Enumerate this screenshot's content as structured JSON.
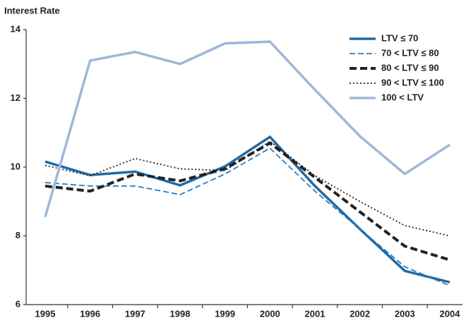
{
  "chart_data": {
    "type": "line",
    "y_label": "Interest Rate",
    "categories": [
      "1995",
      "1996",
      "1997",
      "1998",
      "1999",
      "2000",
      "2001",
      "2002",
      "2003",
      "2004"
    ],
    "ylim": [
      6,
      14
    ],
    "yticks": [
      6,
      8,
      10,
      12,
      14
    ],
    "legend": "upper right",
    "series": [
      {
        "name": "LTV ≤ 70",
        "color": "#1f6aa5",
        "style": "solid",
        "width": 3.5,
        "values": [
          10.16,
          9.77,
          9.87,
          9.47,
          10.02,
          10.88,
          9.45,
          8.2,
          6.98,
          6.65
        ]
      },
      {
        "name": "70 < LTV ≤ 80",
        "color": "#2a7cc0",
        "style": "dashed",
        "width": 1.8,
        "values": [
          9.55,
          9.45,
          9.45,
          9.2,
          9.8,
          10.55,
          9.3,
          8.2,
          7.1,
          6.55
        ]
      },
      {
        "name": "80 < LTV ≤ 90",
        "color": "#222222",
        "style": "bigdash",
        "width": 4,
        "values": [
          9.45,
          9.3,
          9.8,
          9.6,
          9.95,
          10.7,
          9.7,
          8.7,
          7.7,
          7.3
        ]
      },
      {
        "name": "90 < LTV ≤ 100",
        "color": "#222222",
        "style": "dotted",
        "width": 1.8,
        "values": [
          10.05,
          9.75,
          10.25,
          9.95,
          9.9,
          10.75,
          9.75,
          9.0,
          8.3,
          8.0
        ]
      },
      {
        "name": "100 < LTV",
        "color": "#9db8d8",
        "style": "solid",
        "width": 3.5,
        "values": [
          8.55,
          13.1,
          13.35,
          13.0,
          13.6,
          13.65,
          12.25,
          10.9,
          9.8,
          10.65
        ]
      }
    ]
  }
}
